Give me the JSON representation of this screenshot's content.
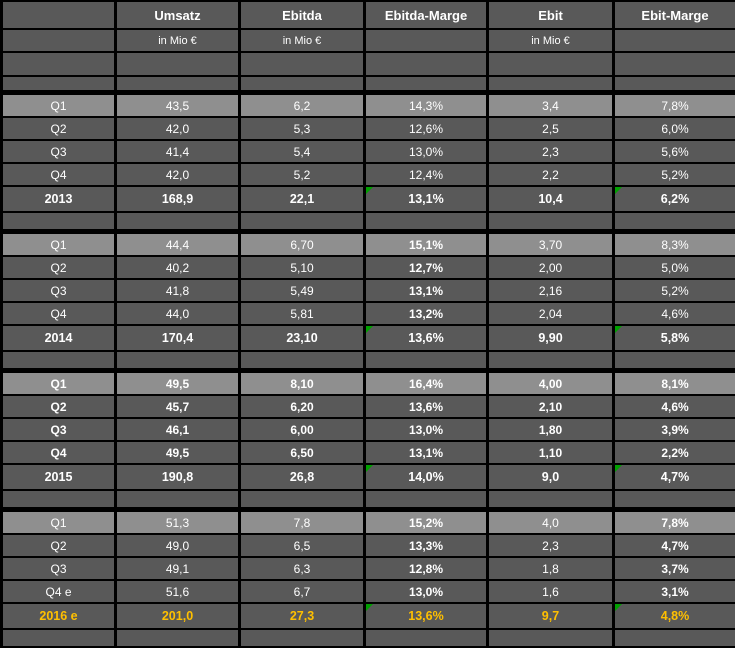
{
  "table": {
    "columns": [
      {
        "label": "",
        "sub": ""
      },
      {
        "label": "Umsatz",
        "sub": "in Mio €"
      },
      {
        "label": "Ebitda",
        "sub": "in Mio €"
      },
      {
        "label": "Ebitda-Marge",
        "sub": ""
      },
      {
        "label": "Ebit",
        "sub": "in Mio €"
      },
      {
        "label": "Ebit-Marge",
        "sub": ""
      }
    ],
    "value_column_keys": [
      "umsatz",
      "ebitda",
      "ebitda-marge",
      "ebit",
      "ebit-marge"
    ],
    "blocks": [
      {
        "year": "2013",
        "all_bold": false,
        "bold_value_columns": [],
        "highlight": false,
        "quarters": [
          {
            "label": "Q1",
            "values": [
              "43,5",
              "6,2",
              "14,3%",
              "3,4",
              "7,8%"
            ]
          },
          {
            "label": "Q2",
            "values": [
              "42,0",
              "5,3",
              "12,6%",
              "2,5",
              "6,0%"
            ]
          },
          {
            "label": "Q3",
            "values": [
              "41,4",
              "5,4",
              "13,0%",
              "2,3",
              "5,6%"
            ]
          },
          {
            "label": "Q4",
            "values": [
              "42,0",
              "5,2",
              "12,4%",
              "2,2",
              "5,2%"
            ]
          }
        ],
        "total": {
          "label": "2013",
          "values": [
            "168,9",
            "22,1",
            "13,1%",
            "10,4",
            "6,2%"
          ],
          "flag_columns": [
            2,
            4
          ]
        }
      },
      {
        "year": "2014",
        "all_bold": false,
        "bold_value_columns": [
          2
        ],
        "highlight": false,
        "quarters": [
          {
            "label": "Q1",
            "values": [
              "44,4",
              "6,70",
              "15,1%",
              "3,70",
              "8,3%"
            ]
          },
          {
            "label": "Q2",
            "values": [
              "40,2",
              "5,10",
              "12,7%",
              "2,00",
              "5,0%"
            ]
          },
          {
            "label": "Q3",
            "values": [
              "41,8",
              "5,49",
              "13,1%",
              "2,16",
              "5,2%"
            ]
          },
          {
            "label": "Q4",
            "values": [
              "44,0",
              "5,81",
              "13,2%",
              "2,04",
              "4,6%"
            ]
          }
        ],
        "total": {
          "label": "2014",
          "values": [
            "170,4",
            "23,10",
            "13,6%",
            "9,90",
            "5,8%"
          ],
          "flag_columns": [
            2,
            4
          ]
        }
      },
      {
        "year": "2015",
        "all_bold": true,
        "bold_value_columns": [],
        "highlight": false,
        "quarters": [
          {
            "label": "Q1",
            "values": [
              "49,5",
              "8,10",
              "16,4%",
              "4,00",
              "8,1%"
            ]
          },
          {
            "label": "Q2",
            "values": [
              "45,7",
              "6,20",
              "13,6%",
              "2,10",
              "4,6%"
            ]
          },
          {
            "label": "Q3",
            "values": [
              "46,1",
              "6,00",
              "13,0%",
              "1,80",
              "3,9%"
            ]
          },
          {
            "label": "Q4",
            "values": [
              "49,5",
              "6,50",
              "13,1%",
              "1,10",
              "2,2%"
            ]
          }
        ],
        "total": {
          "label": "2015",
          "values": [
            "190,8",
            "26,8",
            "14,0%",
            "9,0",
            "4,7%"
          ],
          "flag_columns": [
            2,
            4
          ]
        }
      },
      {
        "year": "2016",
        "all_bold": false,
        "bold_value_columns": [
          2,
          4
        ],
        "highlight": true,
        "quarters": [
          {
            "label": "Q1",
            "values": [
              "51,3",
              "7,8",
              "15,2%",
              "4,0",
              "7,8%"
            ]
          },
          {
            "label": "Q2",
            "values": [
              "49,0",
              "6,5",
              "13,3%",
              "2,3",
              "4,7%"
            ]
          },
          {
            "label": "Q3",
            "values": [
              "49,1",
              "6,3",
              "12,8%",
              "1,8",
              "3,7%"
            ]
          },
          {
            "label": "Q4 e",
            "values": [
              "51,6",
              "6,7",
              "13,0%",
              "1,6",
              "3,1%"
            ]
          }
        ],
        "total": {
          "label": "2016 e",
          "values": [
            "201,0",
            "27,3",
            "13,6%",
            "9,7",
            "4,8%"
          ],
          "flag_columns": [
            2,
            4
          ]
        }
      }
    ]
  },
  "colors": {
    "page_background": "#000000",
    "cell_dark": "#595959",
    "cell_light": "#8f8f8f",
    "text": "#ffffff",
    "forecast_accent": "#ffc000",
    "flag_green": "#00a000"
  }
}
